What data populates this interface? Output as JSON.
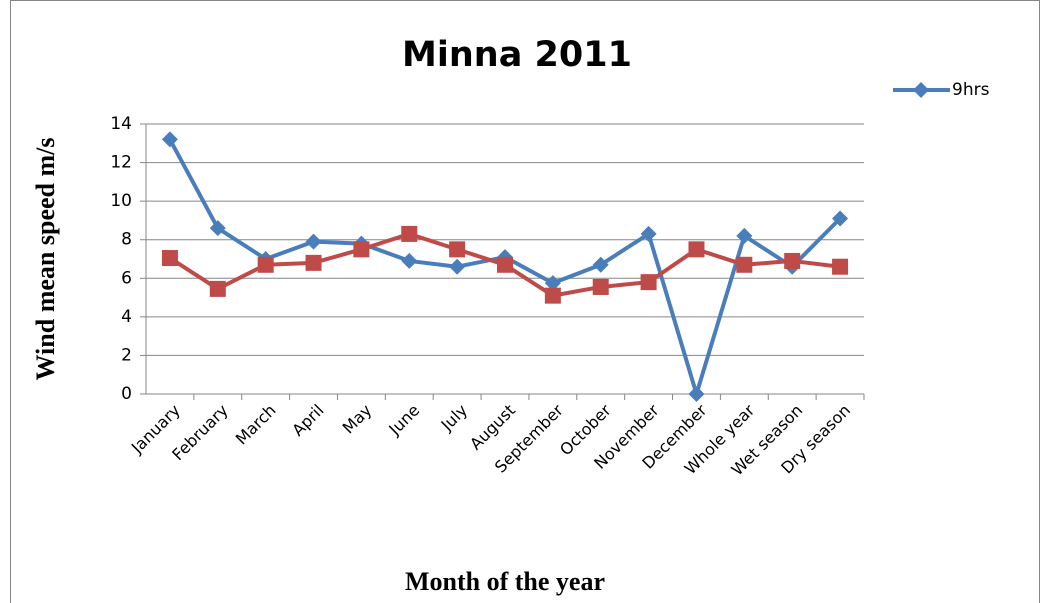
{
  "chart_data": {
    "type": "line",
    "title": "Minna 2011",
    "x_label": "Month of the year",
    "y_label": "Wind mean speed m/s",
    "categories": [
      "January",
      "February",
      "March",
      "April",
      "May",
      "June",
      "July",
      "August",
      "September",
      "October",
      "November",
      "December",
      "Whole year",
      "Wet season",
      "Dry season"
    ],
    "series": [
      {
        "name": "9hrs",
        "color": "#4a7ebb",
        "marker": "diamond",
        "values": [
          13.2,
          8.6,
          7.0,
          7.9,
          7.8,
          6.9,
          6.6,
          7.1,
          5.75,
          6.7,
          8.3,
          0,
          8.2,
          6.6,
          9.1
        ]
      },
      {
        "color": "#be4b48",
        "marker": "square",
        "values": [
          7.05,
          5.45,
          6.7,
          6.8,
          7.5,
          8.3,
          7.5,
          6.7,
          5.1,
          5.55,
          5.8,
          7.5,
          6.7,
          6.9,
          6.6
        ]
      }
    ],
    "ylim": [
      0,
      14
    ],
    "yticks": [
      0,
      2,
      4,
      6,
      8,
      10,
      12,
      14
    ],
    "grid": true,
    "legend": "top-right"
  }
}
